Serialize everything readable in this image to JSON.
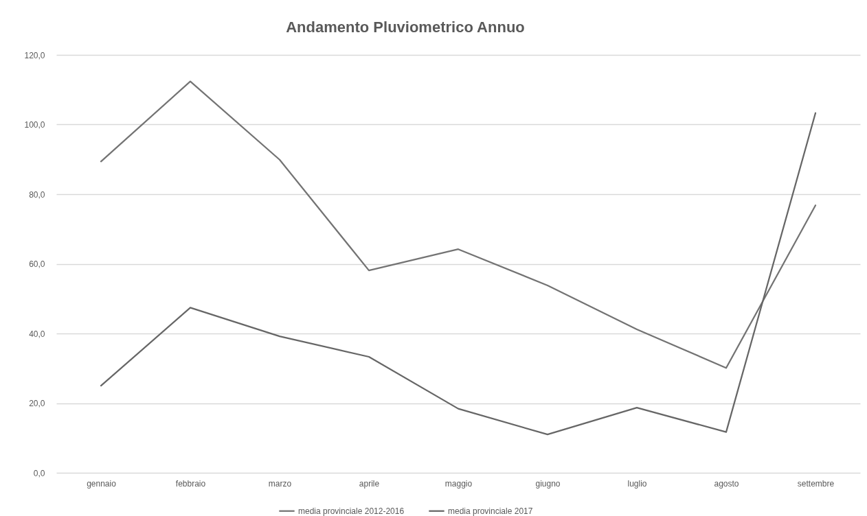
{
  "chart_data": {
    "type": "line",
    "title": "Andamento Pluviometrico Annuo",
    "categories": [
      "gennaio",
      "febbraio",
      "marzo",
      "aprile",
      "maggio",
      "giugno",
      "luglio",
      "agosto",
      "settembre"
    ],
    "series": [
      {
        "name": "media provinciale 2012-2016",
        "color": "#737373",
        "values": [
          89.4,
          112.4,
          89.9,
          58.1,
          64.2,
          53.8,
          41.2,
          30.1,
          76.8
        ]
      },
      {
        "name": "media provinciale 2017",
        "color": "#666666",
        "values": [
          25.0,
          47.4,
          39.2,
          33.3,
          18.4,
          11.0,
          18.7,
          11.7,
          103.3
        ]
      }
    ],
    "ylim": [
      0,
      120
    ],
    "yticks": [
      {
        "value": 0,
        "label": "0,0"
      },
      {
        "value": 20,
        "label": "20,0"
      },
      {
        "value": 40,
        "label": "40,0"
      },
      {
        "value": 60,
        "label": "60,0"
      },
      {
        "value": 80,
        "label": "80,0"
      },
      {
        "value": 100,
        "label": "100,0"
      },
      {
        "value": 120,
        "label": "120,0"
      }
    ],
    "grid": "y",
    "legend": "bottom"
  }
}
